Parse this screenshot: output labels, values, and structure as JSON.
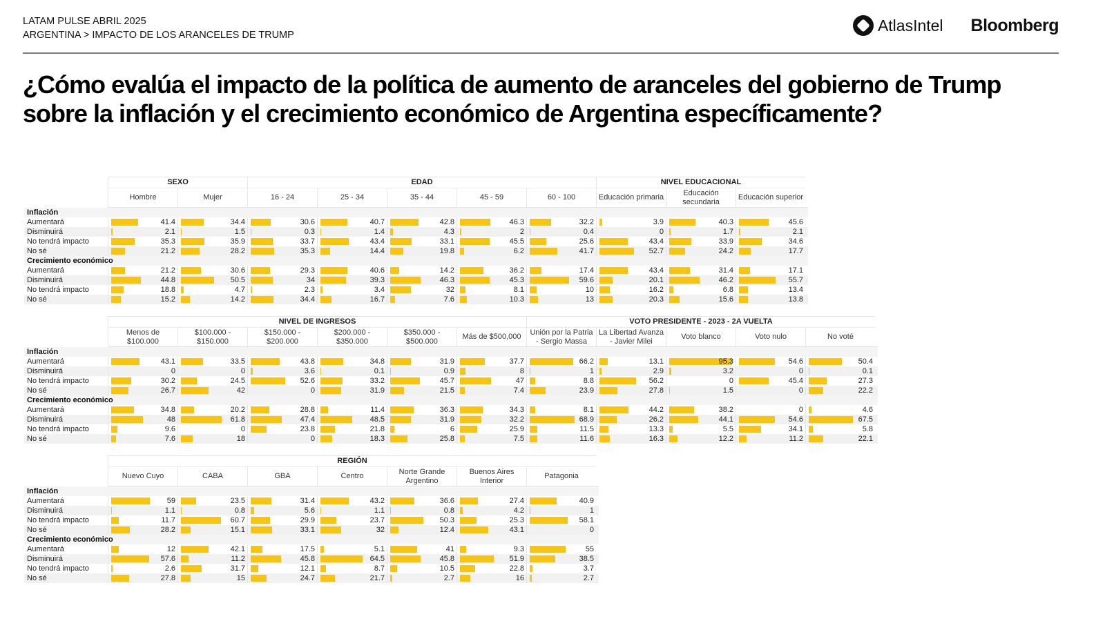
{
  "header": {
    "line1": "LATAM PULSE ABRIL 2025",
    "line2": "ARGENTINA > IMPACTO DE LOS ARANCELES DE TRUMP",
    "logo_atlas": "AtlasIntel",
    "logo_bloomberg": "Bloomberg"
  },
  "title": "¿Cómo evalúa el impacto de la política de aumento de aranceles del gobierno de Trump sobre la inflación y el crecimiento económico de Argentina específicamente?",
  "colors": {
    "bar": "#f7c414",
    "rule": "#7a7a7a"
  },
  "row_labels": {
    "section_inflation": "Inflación",
    "section_growth": "Crecimiento económico",
    "options": [
      "Aumentará",
      "Disminuirá",
      "No tendrá impacto",
      "No sé"
    ]
  },
  "chart_data": [
    {
      "type": "table",
      "title": "¿Cómo evalúa el impacto de la política de aumento de aranceles del gobierno de Trump sobre la inflación y el crecimiento económico de Argentina específicamente?",
      "groups": [
        {
          "name": "SEXO",
          "span": 2
        },
        {
          "name": "EDAD",
          "span": 5
        },
        {
          "name": "NIVEL EDUCACIONAL",
          "span": 3
        }
      ],
      "columns": [
        "Hombre",
        "Mujer",
        "16 - 24",
        "25 - 34",
        "35 - 44",
        "45 - 59",
        "60 - 100",
        "Educación primaria",
        "Educación secundaria",
        "Educación superior"
      ],
      "inflation": [
        [
          41.4,
          34.4,
          30.6,
          40.7,
          42.8,
          46.3,
          32.2,
          3.9,
          40.3,
          45.6
        ],
        [
          2.1,
          1.5,
          0.3,
          1.4,
          4.3,
          2,
          0.4,
          0,
          1.7,
          2.1
        ],
        [
          35.3,
          35.9,
          33.7,
          43.4,
          33.1,
          45.5,
          25.6,
          43.4,
          33.9,
          34.6
        ],
        [
          21.2,
          28.2,
          35.3,
          14.4,
          19.8,
          6.2,
          41.7,
          52.7,
          24.2,
          17.7
        ]
      ],
      "growth": [
        [
          21.2,
          30.6,
          29.3,
          40.6,
          14.2,
          36.2,
          17.4,
          43.4,
          31.4,
          17.1
        ],
        [
          44.8,
          50.5,
          34,
          39.3,
          46.3,
          45.3,
          59.6,
          20.1,
          46.2,
          55.7
        ],
        [
          18.8,
          4.7,
          2.3,
          3.4,
          32,
          8.1,
          10,
          16.2,
          6.8,
          13.4
        ],
        [
          15.2,
          14.2,
          34.4,
          16.7,
          7.6,
          10.3,
          13,
          20.3,
          15.6,
          13.8
        ]
      ]
    },
    {
      "type": "table",
      "groups": [
        {
          "name": "NIVEL DE INGRESOS",
          "span": 6
        },
        {
          "name": "VOTO PRESIDENTE - 2023 - 2A VUELTA",
          "span": 5
        }
      ],
      "columns": [
        "Menos de $100.000",
        "$100.000 - $150.000",
        "$150.000 - $200.000",
        "$200.000 - $350.000",
        "$350.000 - $500.000",
        "Más de $500,000",
        "Unión por la Patria - Sergio Massa",
        "La Libertad Avanza - Javier Milei",
        "Voto blanco",
        "Voto nulo",
        "No voté"
      ],
      "inflation": [
        [
          43.1,
          33.5,
          43.8,
          34.8,
          31.9,
          37.7,
          66.2,
          13.1,
          95.3,
          54.6,
          50.4
        ],
        [
          0,
          0,
          3.6,
          0.1,
          0.9,
          8,
          1,
          2.9,
          3.2,
          0,
          0.1
        ],
        [
          30.2,
          24.5,
          52.6,
          33.2,
          45.7,
          47,
          8.8,
          56.2,
          0,
          45.4,
          27.3
        ],
        [
          26.7,
          42,
          0,
          31.9,
          21.5,
          7.4,
          23.9,
          27.8,
          1.5,
          0,
          22.2
        ]
      ],
      "growth": [
        [
          34.8,
          20.2,
          28.8,
          11.4,
          36.3,
          34.3,
          8.1,
          44.2,
          38.2,
          0,
          4.6
        ],
        [
          48,
          61.8,
          47.4,
          48.5,
          31.9,
          32.2,
          68.9,
          26.2,
          44.1,
          54.6,
          67.5
        ],
        [
          9.6,
          0,
          23.8,
          21.8,
          6,
          25.9,
          11.5,
          13.3,
          5.5,
          34.1,
          5.8
        ],
        [
          7.6,
          18,
          0,
          18.3,
          25.8,
          7.5,
          11.6,
          16.3,
          12.2,
          11.2,
          22.1
        ]
      ]
    },
    {
      "type": "table",
      "groups": [
        {
          "name": "REGIÓN",
          "span": 7
        }
      ],
      "columns": [
        "Nuevo Cuyo",
        "CABA",
        "GBA",
        "Centro",
        "Norte Grande Argentino",
        "Buenos Aires Interior",
        "Patagonia"
      ],
      "inflation": [
        [
          59,
          23.5,
          31.4,
          43.2,
          36.6,
          27.4,
          40.9
        ],
        [
          1.1,
          0.8,
          5.6,
          1.1,
          0.8,
          4.2,
          1
        ],
        [
          11.7,
          60.7,
          29.9,
          23.7,
          50.3,
          25.3,
          58.1
        ],
        [
          28.2,
          15.1,
          33.1,
          32,
          12.4,
          43.1,
          0
        ]
      ],
      "growth": [
        [
          12,
          42.1,
          17.5,
          5.1,
          41,
          9.3,
          55
        ],
        [
          57.6,
          11.2,
          45.8,
          64.5,
          45.8,
          51.9,
          38.5
        ],
        [
          2.6,
          31.7,
          12.1,
          8.7,
          10.5,
          22.8,
          3.7
        ],
        [
          27.8,
          15,
          24.7,
          21.7,
          2.7,
          16,
          2.7
        ]
      ]
    }
  ]
}
